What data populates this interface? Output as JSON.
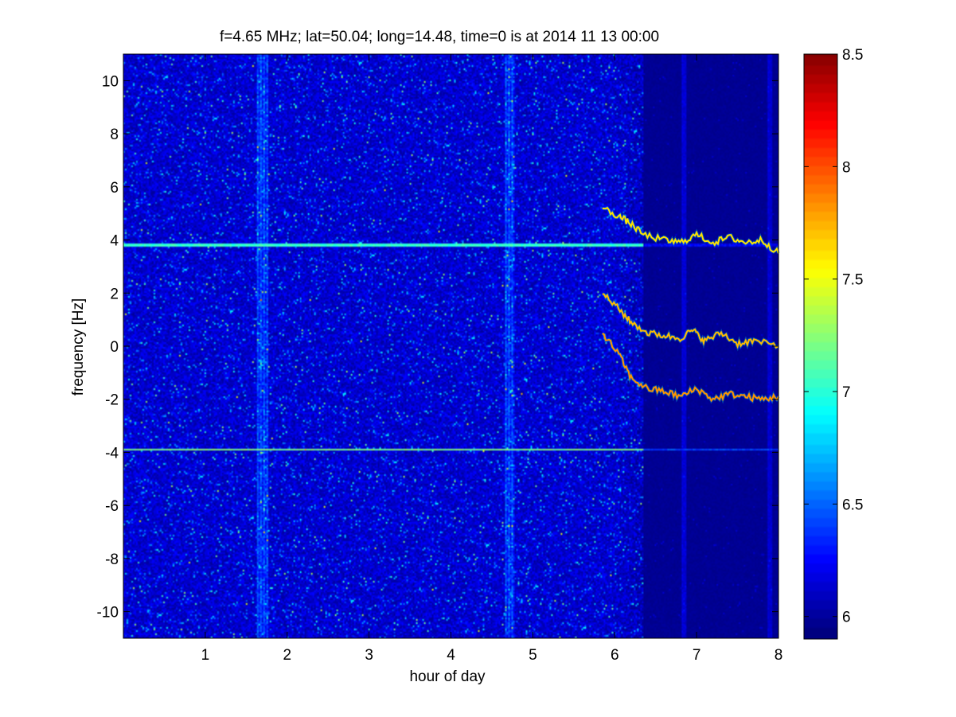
{
  "chart_data": {
    "type": "heatmap",
    "title": "f=4.65 MHz;  lat=50.04; long=14.48, time=0 is at 2014 11 13 00:00",
    "xlabel": "hour of day",
    "ylabel": "frequency [Hz]",
    "xlim": [
      0,
      8
    ],
    "ylim": [
      -11,
      11
    ],
    "x_ticks": [
      1,
      2,
      3,
      4,
      5,
      6,
      7,
      8
    ],
    "y_ticks": [
      -10,
      -8,
      -6,
      -4,
      -2,
      0,
      2,
      4,
      6,
      8,
      10
    ],
    "colorbar": {
      "clim": [
        5.9,
        8.5
      ],
      "ticks": [
        6,
        6.5,
        7,
        7.5,
        8,
        8.5
      ],
      "colormap": "jet"
    },
    "background_level_before_hour": 6.1,
    "background_level_after_hour": 5.95,
    "quiet_transition_hour": 6.35,
    "interference_columns_hours": [
      1.7,
      4.72
    ],
    "horizontal_lines": [
      {
        "frequency_hz": 3.8,
        "level": 7.1
      },
      {
        "frequency_hz": -3.9,
        "level": 7.3
      }
    ],
    "traces": [
      {
        "points": [
          [
            5.85,
            5.2
          ],
          [
            6.05,
            4.9
          ],
          [
            6.2,
            4.6
          ],
          [
            6.35,
            4.2
          ],
          [
            6.6,
            4.0
          ],
          [
            6.8,
            3.9
          ],
          [
            7.0,
            4.2
          ],
          [
            7.2,
            3.9
          ],
          [
            7.4,
            4.1
          ],
          [
            7.6,
            3.9
          ],
          [
            7.8,
            4.0
          ],
          [
            8.0,
            3.5
          ]
        ],
        "level": 7.6
      },
      {
        "points": [
          [
            5.85,
            2.0
          ],
          [
            6.05,
            1.4
          ],
          [
            6.2,
            0.9
          ],
          [
            6.4,
            0.5
          ],
          [
            6.6,
            0.4
          ],
          [
            6.8,
            0.3
          ],
          [
            6.95,
            0.6
          ],
          [
            7.1,
            0.2
          ],
          [
            7.3,
            0.5
          ],
          [
            7.5,
            0.1
          ],
          [
            7.7,
            0.2
          ],
          [
            8.0,
            0.0
          ]
        ],
        "level": 7.7
      },
      {
        "points": [
          [
            5.85,
            0.5
          ],
          [
            6.05,
            -0.3
          ],
          [
            6.2,
            -1.2
          ],
          [
            6.4,
            -1.6
          ],
          [
            6.6,
            -1.7
          ],
          [
            6.8,
            -1.9
          ],
          [
            7.0,
            -1.6
          ],
          [
            7.2,
            -2.0
          ],
          [
            7.4,
            -1.8
          ],
          [
            7.6,
            -1.9
          ],
          [
            7.8,
            -2.0
          ],
          [
            8.0,
            -1.9
          ]
        ],
        "level": 7.8
      }
    ]
  }
}
